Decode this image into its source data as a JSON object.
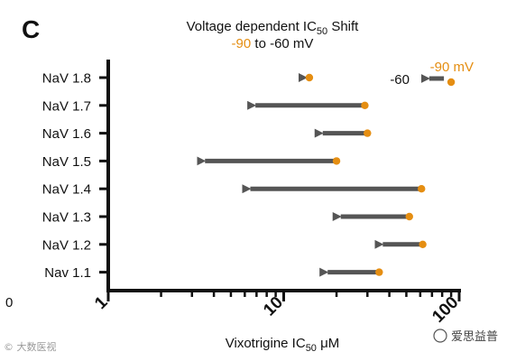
{
  "panel_label": "C",
  "colors": {
    "orange": "#E58E12",
    "arrow": "#555555",
    "axis": "#111111",
    "text": "#111111"
  },
  "chart_data": {
    "type": "dumbbell",
    "title": "Voltage dependent IC",
    "title_sub": "50",
    "title_suffix": " Shift",
    "subtitle_parts": [
      {
        "text": "-90",
        "color": "#E58E12"
      },
      {
        "text": " to -60 mV",
        "color": "#111111"
      }
    ],
    "xlabel": "Vixotrigine IC",
    "xlabel_sub": "50",
    "xlabel_unit": " μM",
    "x_scale": "log",
    "xlim": [
      1,
      100
    ],
    "x_major_ticks": [
      {
        "value": 1,
        "label": "1"
      },
      {
        "value": 10,
        "label": "10"
      },
      {
        "value": 100,
        "label": "100"
      }
    ],
    "x_minor_ticks": [
      2,
      3,
      4,
      5,
      6,
      7,
      8,
      9,
      20,
      30,
      40,
      50,
      60,
      70,
      80,
      90
    ],
    "categories": [
      "NaV 1.8",
      "NaV 1.7",
      "NaV 1.6",
      "NaV 1.5",
      "NaV 1.4",
      "NaV 1.3",
      "NaV 1.2",
      "Nav 1.1"
    ],
    "series": [
      {
        "name": "-90 mV",
        "values": [
          14,
          29,
          30,
          20,
          61,
          52,
          62,
          35
        ]
      },
      {
        "name": "-60",
        "values": [
          13.5,
          6.2,
          15,
          3.2,
          5.8,
          19,
          33,
          16
        ]
      }
    ],
    "legend": {
      "from_label": "-90 mV",
      "to_label": "-60",
      "from_value": 90,
      "to_value": 70
    },
    "stray_tick_label": "0"
  },
  "watermarks": {
    "left": "© 大数医视",
    "right": "爱思益普"
  }
}
